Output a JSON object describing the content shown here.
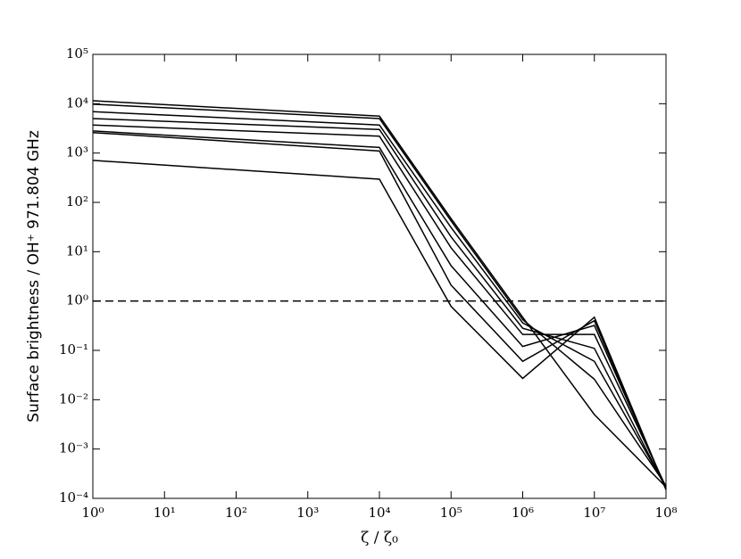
{
  "chart_data": {
    "type": "line",
    "x_label": "ζ / ζ₀",
    "y_label": "Surface brightness / OH⁺ 971.804 GHz",
    "xscale": "log",
    "yscale": "log",
    "xlim": [
      1,
      100000000
    ],
    "ylim": [
      0.0001,
      100000
    ],
    "xticks": [
      {
        "value": 1,
        "label": "10⁰"
      },
      {
        "value": 10,
        "label": "10¹"
      },
      {
        "value": 100,
        "label": "10²"
      },
      {
        "value": 1000,
        "label": "10³"
      },
      {
        "value": 10000,
        "label": "10⁴"
      },
      {
        "value": 100000,
        "label": "10⁵"
      },
      {
        "value": 1000000,
        "label": "10⁶"
      },
      {
        "value": 10000000,
        "label": "10⁷"
      },
      {
        "value": 100000000,
        "label": "10⁸"
      }
    ],
    "yticks": [
      {
        "value": 0.0001,
        "label": "10⁻⁴"
      },
      {
        "value": 0.001,
        "label": "10⁻³"
      },
      {
        "value": 0.01,
        "label": "10⁻²"
      },
      {
        "value": 0.1,
        "label": "10⁻¹"
      },
      {
        "value": 1,
        "label": "10⁰"
      },
      {
        "value": 10,
        "label": "10¹"
      },
      {
        "value": 100,
        "label": "10²"
      },
      {
        "value": 1000,
        "label": "10³"
      },
      {
        "value": 10000,
        "label": "10⁴"
      },
      {
        "value": 100000,
        "label": "10⁵"
      }
    ],
    "x": [
      1,
      10000,
      100000,
      1000000,
      10000000,
      100000000
    ],
    "series": [
      {
        "color": "#000000",
        "values": [
          11500,
          5600,
          47,
          0.47,
          0.005,
          0.00017
        ]
      },
      {
        "color": "#000000",
        "values": [
          9800,
          5000,
          42,
          0.42,
          0.026,
          0.00018
        ]
      },
      {
        "color": "#000000",
        "values": [
          6900,
          3700,
          31,
          0.36,
          0.06,
          0.00017
        ]
      },
      {
        "color": "#000000",
        "values": [
          5000,
          3000,
          20,
          0.28,
          0.11,
          0.00016
        ]
      },
      {
        "color": "#000000",
        "values": [
          3700,
          2200,
          12,
          0.21,
          0.21,
          0.00017
        ]
      },
      {
        "color": "#000000",
        "values": [
          2800,
          1300,
          5.2,
          0.12,
          0.32,
          0.00016
        ]
      },
      {
        "color": "#000000",
        "values": [
          2600,
          1100,
          2.1,
          0.06,
          0.4,
          0.00015
        ]
      },
      {
        "color": "#000000",
        "values": [
          710,
          295,
          0.78,
          0.027,
          0.47,
          0.00015
        ]
      }
    ],
    "reference_line": {
      "value": 1,
      "style": "dashed",
      "color": "#000000"
    }
  }
}
